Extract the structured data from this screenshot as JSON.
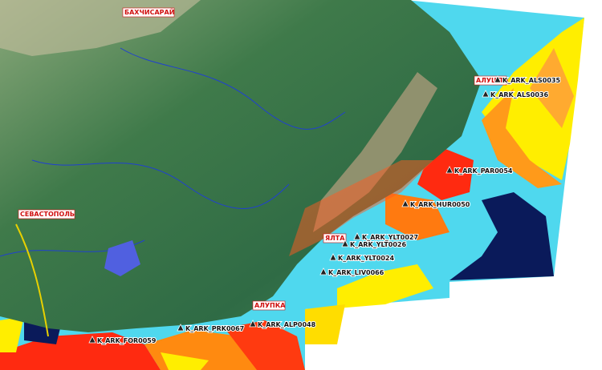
{
  "cities": [
    {
      "label": "БАХЧИСАРАЙ"
    },
    {
      "label": "СЕВАСТОПОЛЬ"
    },
    {
      "label": "АЛУШТА"
    },
    {
      "label": "ЯЛТА"
    },
    {
      "label": "АЛУПКА"
    }
  ],
  "stations": [
    {
      "label": "K_ARK_ALS0035"
    },
    {
      "label": "K_ARK_ALS0036"
    },
    {
      "label": "K_ARK_PAR0054"
    },
    {
      "label": "K_ARK_HUR0050"
    },
    {
      "label": "K_ARK_YLT0027"
    },
    {
      "label": "K_ARK_YLT0026"
    },
    {
      "label": "K_ARK_YLT0024"
    },
    {
      "label": "K_ARK_LIV0066"
    },
    {
      "label": "K_ARK_ALP0048"
    },
    {
      "label": "K_ARK_PRK0067"
    },
    {
      "label": "K_ARK_FOR0059"
    }
  ]
}
